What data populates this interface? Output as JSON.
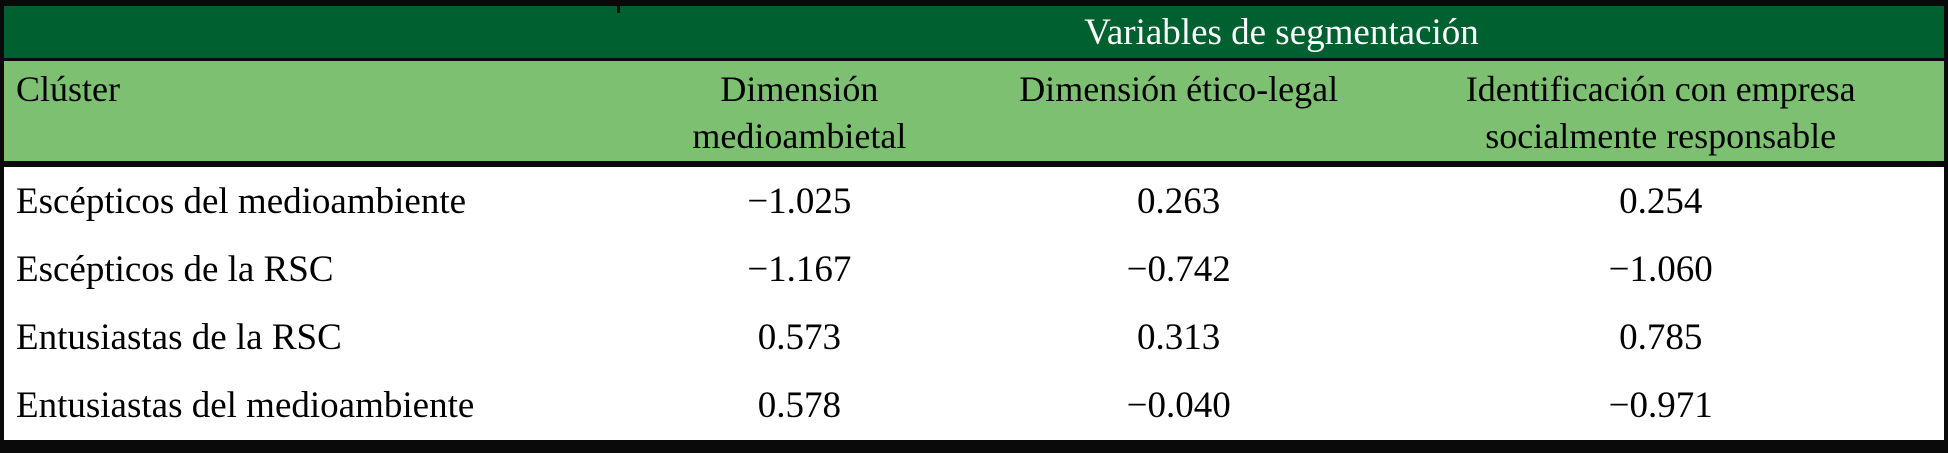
{
  "colors": {
    "header_dark_green": "#00602f",
    "header_light_green": "#7dc072",
    "border_black": "#0a0a0a",
    "span_header_text": "#ffffff",
    "body_text": "#000000"
  },
  "table": {
    "span_header": "Variables de segmentación",
    "col_headers": {
      "cluster": "Clúster",
      "col2_line1": "Dimensión",
      "col2_line2": "medioambietal",
      "col3": "Dimensión ético-legal",
      "col4_line1": "Identificación con empresa",
      "col4_line2": "socialmente responsable"
    },
    "rows": [
      {
        "cells": [
          "Escépticos del medioambiente",
          "−1.025",
          "0.263",
          "0.254"
        ]
      },
      {
        "cells": [
          "Escépticos de la RSC",
          "−1.167",
          "−0.742",
          "−1.060"
        ]
      },
      {
        "cells": [
          "Entusiastas de la RSC",
          "0.573",
          "0.313",
          "0.785"
        ]
      },
      {
        "cells": [
          "Entusiastas del medioambiente",
          "0.578",
          "−0.040",
          "−0.971"
        ]
      }
    ]
  }
}
